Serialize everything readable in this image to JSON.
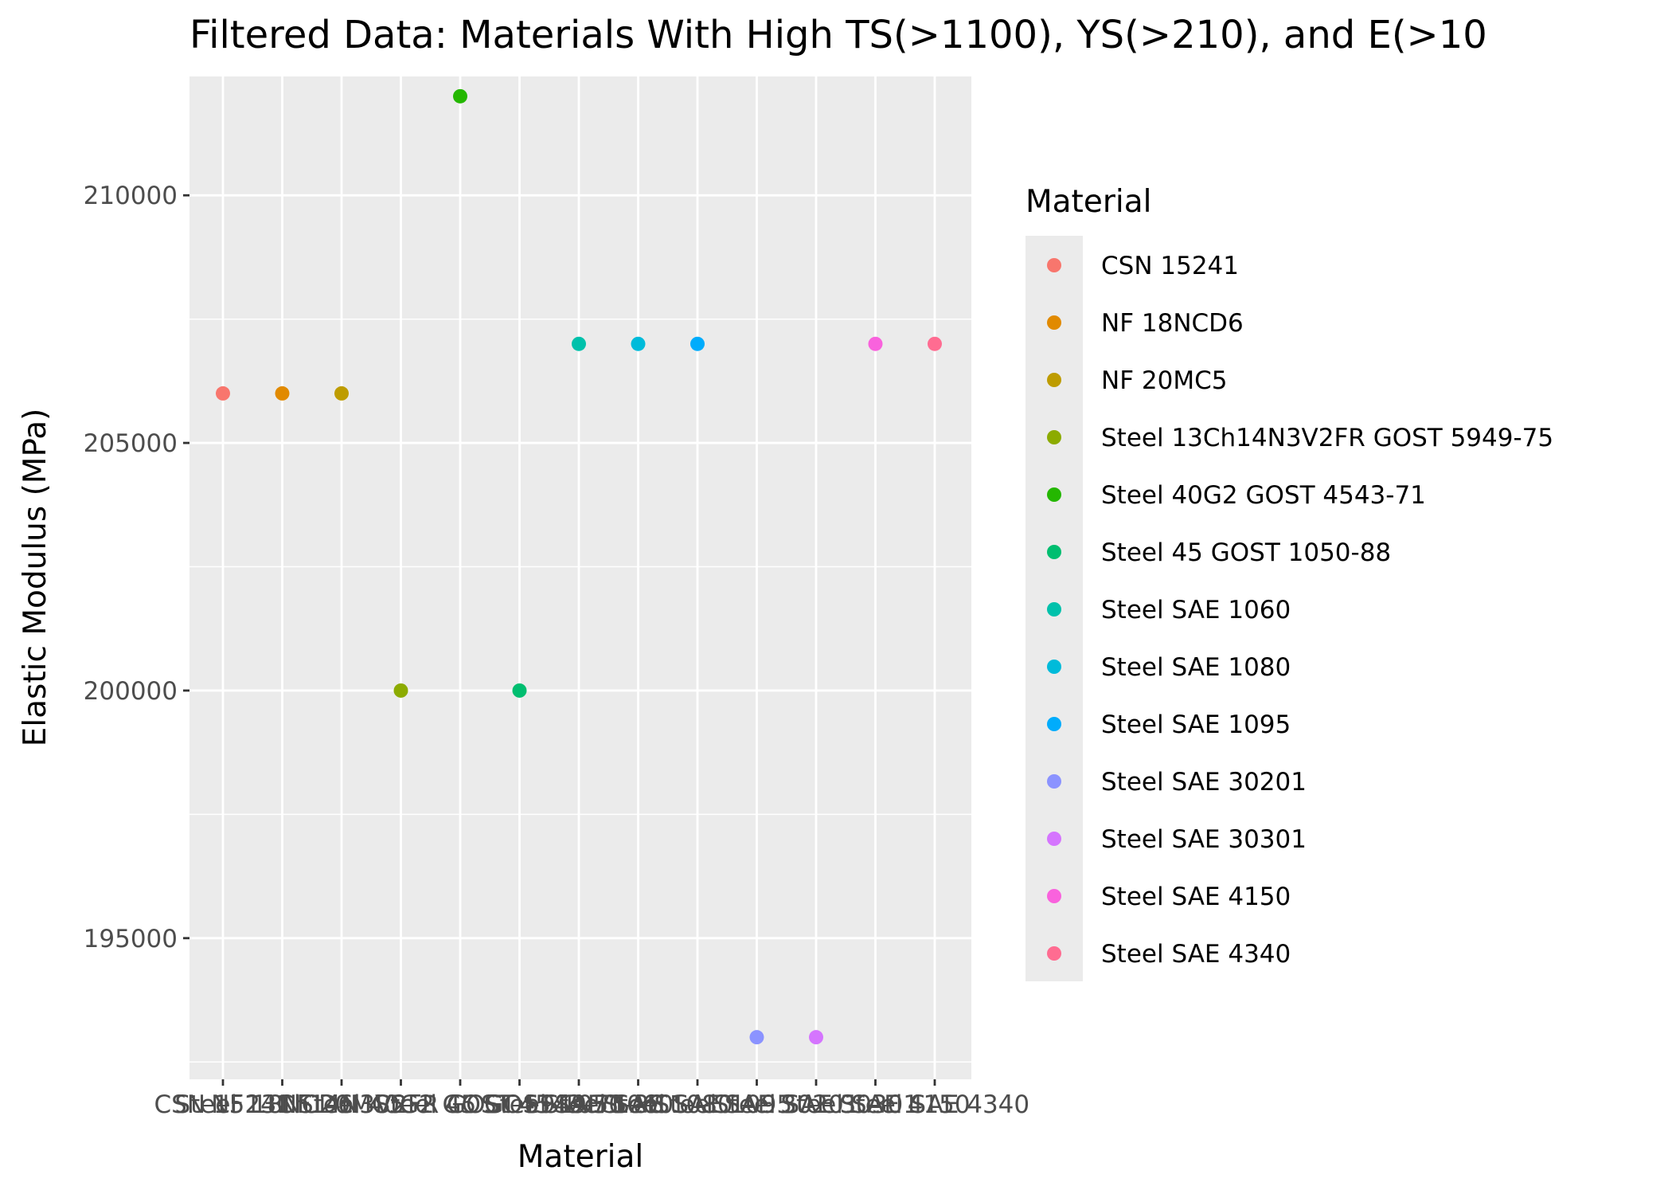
{
  "chart_data": {
    "type": "scatter",
    "title": "Filtered Data: Materials With High TS(>1100), YS(>210), and E(>10",
    "xlabel": "Material",
    "ylabel": "Elastic Modulus (MPa)",
    "ylim": [
      192150,
      212400
    ],
    "y_ticks": [
      195000,
      200000,
      205000,
      210000
    ],
    "grid": true,
    "legend": {
      "title": "Material",
      "position": "right"
    },
    "categories": [
      "CSN 15241",
      "NF 18NCD6",
      "NF 20MC5",
      "Steel 13Ch14N3V2FR GOST 5949-75",
      "Steel 40G2 GOST 4543-71",
      "Steel 45 GOST 1050-88",
      "Steel SAE 1060",
      "Steel SAE 1080",
      "Steel SAE 1095",
      "Steel SAE 30201",
      "Steel SAE 30301",
      "Steel SAE 4150",
      "Steel SAE 4340"
    ],
    "colors": [
      "#F8766D",
      "#E18A00",
      "#BE9C00",
      "#8CAB00",
      "#24B700",
      "#00BE70",
      "#00C1AB",
      "#00BBDA",
      "#00ACFC",
      "#8B93FF",
      "#D575FE",
      "#F962DD",
      "#FF6C91"
    ],
    "values": [
      206000,
      206000,
      206000,
      200000,
      212000,
      200000,
      207000,
      207000,
      207000,
      193000,
      193000,
      207000,
      207000
    ]
  }
}
